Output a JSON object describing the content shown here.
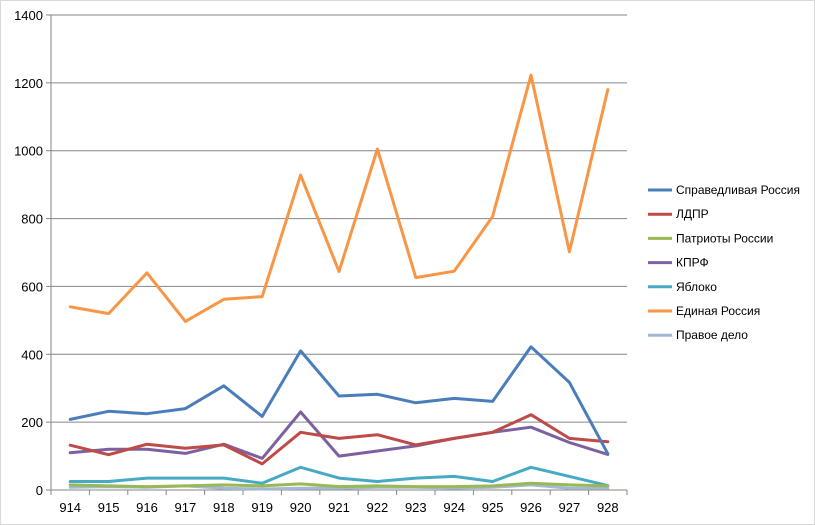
{
  "chart_data": {
    "type": "line",
    "title": "",
    "xlabel": "",
    "ylabel": "",
    "ylim": [
      0,
      1400
    ],
    "yticks": [
      0,
      200,
      400,
      600,
      800,
      1000,
      1200,
      1400
    ],
    "grid": "horizontal",
    "legend_position": "right",
    "categories": [
      "914",
      "915",
      "916",
      "917",
      "918",
      "919",
      "920",
      "921",
      "922",
      "923",
      "924",
      "925",
      "926",
      "927",
      "928"
    ],
    "series": [
      {
        "name": "Справедливая Россия",
        "color": "#4a7ebb",
        "values": [
          208,
          232,
          225,
          240,
          307,
          217,
          410,
          277,
          282,
          257,
          270,
          261,
          422,
          317,
          107
        ]
      },
      {
        "name": "ЛДПР",
        "color": "#be4b48",
        "values": [
          132,
          104,
          135,
          123,
          133,
          77,
          170,
          152,
          163,
          133,
          152,
          170,
          222,
          152,
          142
        ]
      },
      {
        "name": "Патриоты России",
        "color": "#98b954",
        "values": [
          15,
          12,
          10,
          12,
          15,
          12,
          18,
          10,
          12,
          10,
          10,
          12,
          20,
          15,
          12
        ]
      },
      {
        "name": "КПРФ",
        "color": "#7d60a0",
        "values": [
          110,
          120,
          120,
          108,
          135,
          93,
          230,
          100,
          115,
          130,
          152,
          170,
          185,
          140,
          105
        ]
      },
      {
        "name": "Яблоко",
        "color": "#46aac5",
        "values": [
          25,
          25,
          35,
          35,
          35,
          20,
          67,
          35,
          25,
          35,
          40,
          25,
          67,
          40,
          13
        ]
      },
      {
        "name": "Единая Россия",
        "color": "#f79646",
        "values": [
          540,
          520,
          640,
          497,
          562,
          570,
          928,
          644,
          1005,
          626,
          645,
          806,
          1223,
          702,
          1180
        ]
      },
      {
        "name": "Правое дело",
        "color": "#a5b8d6",
        "values": [
          8,
          10,
          8,
          12,
          5,
          3,
          5,
          5,
          8,
          8,
          6,
          8,
          15,
          5,
          5
        ]
      }
    ]
  }
}
